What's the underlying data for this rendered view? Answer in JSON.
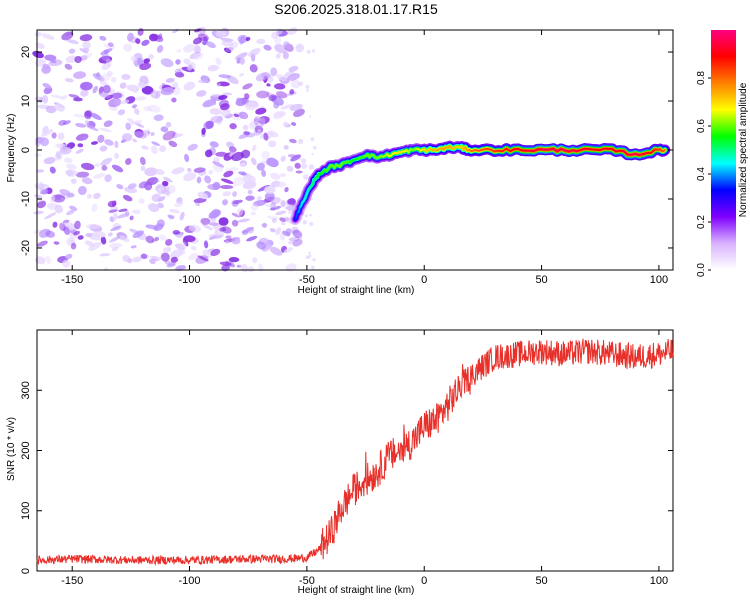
{
  "title": "S206.2025.318.01.17.R15",
  "chart_data": [
    {
      "type": "heatmap",
      "xlabel": "Height of straight line (km)",
      "ylabel": "Frequency (Hz)",
      "xlim": [
        -165,
        106
      ],
      "ylim": [
        -24.5,
        24.5
      ],
      "xticks": [
        -150,
        -100,
        -50,
        0,
        50,
        100
      ],
      "yticks": [
        -20,
        -10,
        0,
        10,
        20
      ],
      "colorbar": {
        "label": "Normalized spectral amplitude",
        "range": [
          0,
          1
        ],
        "ticks": [
          "0.0",
          "0.2",
          "0.4",
          "0.6",
          "0.8"
        ],
        "tick_values": [
          0,
          0.2,
          0.4,
          0.6,
          0.8
        ],
        "colormap": [
          "#ffffff",
          "#d9b3ff",
          "#8000ff",
          "#0000ff",
          "#00ffff",
          "#00ff00",
          "#ffff00",
          "#ff8000",
          "#ff0000",
          "#ff0080"
        ]
      },
      "noise_region": {
        "x_range": [
          -165,
          -53
        ],
        "color": "#8a2be2"
      },
      "signal_trace": {
        "x": [
          -55,
          -52,
          -48,
          -45,
          -40,
          -35,
          -30,
          -25,
          -20,
          -15,
          -10,
          -5,
          0,
          5,
          10,
          15,
          20,
          30,
          40,
          50,
          60,
          70,
          80,
          90,
          100,
          103
        ],
        "freq": [
          -14,
          -11,
          -7,
          -5,
          -3.5,
          -3,
          -2,
          -1,
          -1.5,
          -1,
          -0.5,
          0,
          0,
          0,
          0.5,
          0.5,
          0,
          0,
          0,
          0,
          0,
          0,
          0,
          -1,
          0,
          0
        ],
        "amplitude": [
          0.35,
          0.45,
          0.5,
          0.55,
          0.6,
          0.6,
          0.55,
          0.6,
          0.6,
          0.65,
          0.7,
          0.6,
          0.7,
          0.75,
          0.75,
          0.7,
          0.8,
          0.85,
          0.9,
          0.95,
          0.95,
          0.9,
          0.9,
          0.95,
          0.85,
          0.8
        ]
      }
    },
    {
      "type": "line",
      "xlabel": "Height of straight line (km)",
      "ylabel": "SNR (10 * v/v)",
      "xlim": [
        -165,
        106
      ],
      "ylim": [
        0,
        400
      ],
      "xticks": [
        -150,
        -100,
        -50,
        0,
        50,
        100
      ],
      "yticks": [
        0,
        100,
        200,
        300
      ],
      "color": "#e8302a",
      "series": [
        {
          "x": [
            -165,
            -150,
            -125,
            -100,
            -75,
            -60,
            -50,
            -45,
            -40,
            -35,
            -30,
            -25,
            -20,
            -15,
            -10,
            -5,
            0,
            5,
            10,
            15,
            20,
            25,
            30,
            40,
            50,
            60,
            70,
            80,
            90,
            100,
            106
          ],
          "values": [
            18,
            20,
            18,
            18,
            20,
            20,
            22,
            35,
            60,
            105,
            135,
            150,
            165,
            190,
            200,
            215,
            240,
            250,
            275,
            305,
            325,
            340,
            355,
            360,
            365,
            360,
            365,
            360,
            355,
            360,
            365
          ]
        }
      ]
    }
  ]
}
